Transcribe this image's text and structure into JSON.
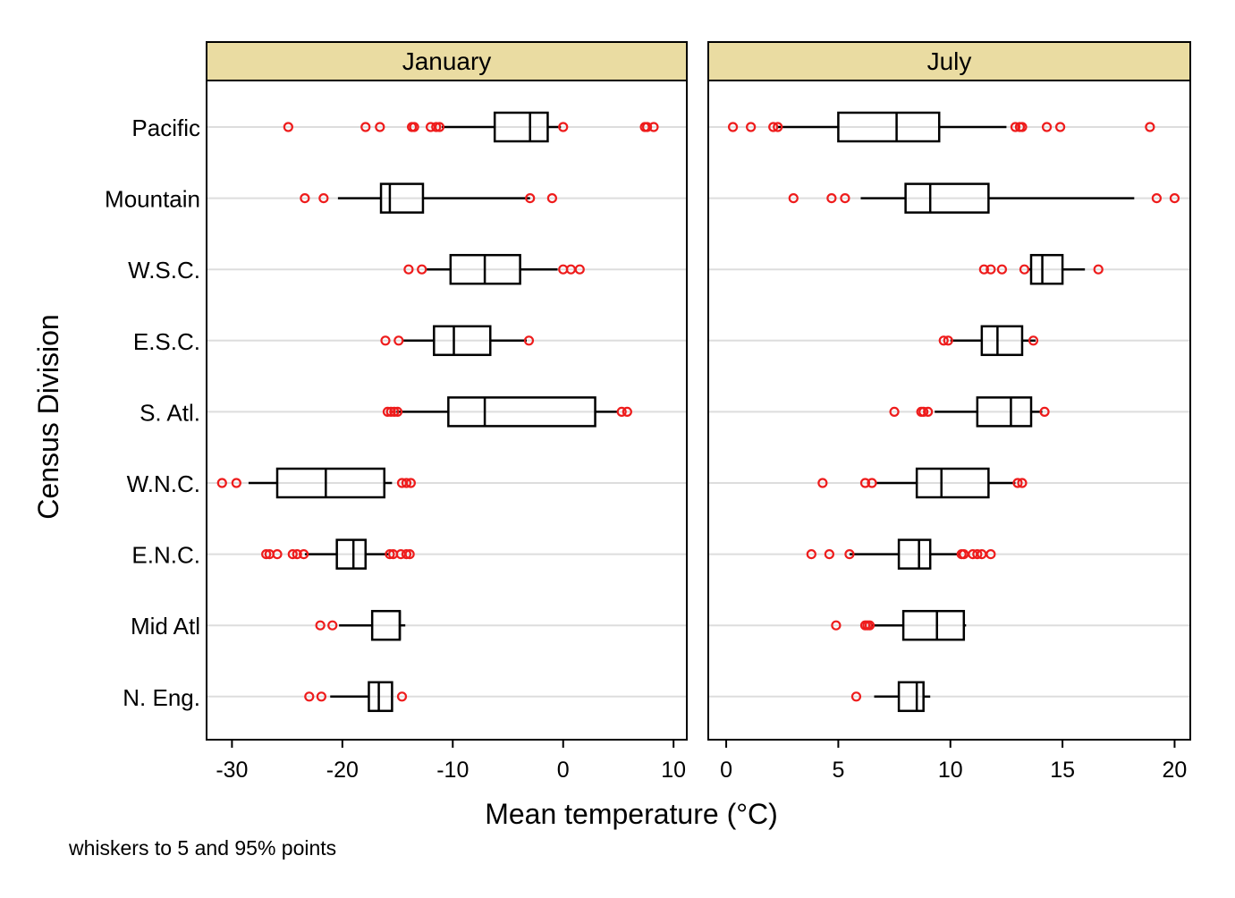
{
  "chart_data": {
    "type": "boxplot",
    "ylabel": "Census Division",
    "xlabel": "Mean temperature (°C)",
    "note": "whiskers to 5 and 95% points",
    "categories": [
      "Pacific",
      "Mountain",
      "W.S.C.",
      "E.S.C.",
      "S. Atl.",
      "W.N.C.",
      "E.N.C.",
      "Mid Atl",
      "N. Eng."
    ],
    "panels": [
      {
        "title": "January",
        "xlim": [
          -32.3,
          11.2
        ],
        "xticks": [
          -30,
          -20,
          -10,
          0,
          10
        ],
        "boxes": [
          {
            "category": "Pacific",
            "whisker_low": -11.0,
            "q1": -6.2,
            "median": -3.0,
            "q3": -1.4,
            "whisker_high": -0.2,
            "outliers": [
              -24.9,
              -17.9,
              -16.6,
              -13.7,
              -13.5,
              -12.0,
              -11.5,
              -11.2,
              0.0,
              7.4,
              7.6,
              8.2
            ]
          },
          {
            "category": "Mountain",
            "whisker_low": -20.4,
            "q1": -16.5,
            "median": -15.7,
            "q3": -12.7,
            "whisker_high": -3.0,
            "outliers": [
              -23.4,
              -21.7,
              -3.0,
              -1.0
            ]
          },
          {
            "category": "W.S.C.",
            "whisker_low": -12.5,
            "q1": -10.2,
            "median": -7.1,
            "q3": -3.9,
            "whisker_high": -0.5,
            "outliers": [
              -14.0,
              -12.8,
              0.0,
              0.7,
              1.5
            ]
          },
          {
            "category": "E.S.C.",
            "whisker_low": -14.5,
            "q1": -11.7,
            "median": -9.9,
            "q3": -6.6,
            "whisker_high": -3.3,
            "outliers": [
              -16.1,
              -14.9,
              -3.1
            ]
          },
          {
            "category": "S. Atl.",
            "whisker_low": -15.1,
            "q1": -10.4,
            "median": -7.1,
            "q3": 2.9,
            "whisker_high": 5.0,
            "outliers": [
              -15.9,
              -15.6,
              -15.3,
              -15.0,
              5.3,
              5.8
            ]
          },
          {
            "category": "W.N.C.",
            "whisker_low": -28.5,
            "q1": -25.9,
            "median": -21.5,
            "q3": -16.2,
            "whisker_high": -15.5,
            "outliers": [
              -30.9,
              -29.6,
              -14.6,
              -14.2,
              -13.8
            ]
          },
          {
            "category": "E.N.C.",
            "whisker_low": -23.4,
            "q1": -20.5,
            "median": -19.0,
            "q3": -17.9,
            "whisker_high": -15.7,
            "outliers": [
              -26.9,
              -26.6,
              -25.9,
              -24.5,
              -24.1,
              -23.5,
              -15.7,
              -15.4,
              -14.7,
              -14.2,
              -13.9
            ]
          },
          {
            "category": "Mid Atl",
            "whisker_low": -20.3,
            "q1": -17.3,
            "median": -14.8,
            "q3": -14.8,
            "whisker_high": -14.3,
            "outliers": [
              -22.0,
              -20.9
            ]
          },
          {
            "category": "N. Eng.",
            "whisker_low": -21.1,
            "q1": -17.6,
            "median": -16.7,
            "q3": -15.5,
            "whisker_high": -15.5,
            "outliers": [
              -23.0,
              -21.9,
              -14.6
            ]
          }
        ]
      },
      {
        "title": "July",
        "xlim": [
          -0.8,
          20.7
        ],
        "xticks": [
          0,
          5,
          10,
          15,
          20
        ],
        "boxes": [
          {
            "category": "Pacific",
            "whisker_low": 2.3,
            "q1": 5.0,
            "median": 7.6,
            "q3": 9.5,
            "whisker_high": 12.5,
            "outliers": [
              0.3,
              1.1,
              2.1,
              2.3,
              12.9,
              13.1,
              13.2,
              14.3,
              14.9,
              18.9
            ]
          },
          {
            "category": "Mountain",
            "whisker_low": 6.0,
            "q1": 8.0,
            "median": 9.1,
            "q3": 11.7,
            "whisker_high": 18.2,
            "outliers": [
              3.0,
              4.7,
              5.3,
              19.2,
              20.0
            ]
          },
          {
            "category": "W.S.C.",
            "whisker_low": 13.5,
            "q1": 13.6,
            "median": 14.1,
            "q3": 15.0,
            "whisker_high": 16.0,
            "outliers": [
              11.5,
              11.8,
              12.3,
              13.3,
              16.6
            ]
          },
          {
            "category": "E.S.C.",
            "whisker_low": 10.0,
            "q1": 11.4,
            "median": 12.1,
            "q3": 13.2,
            "whisker_high": 13.8,
            "outliers": [
              9.7,
              9.9,
              13.7
            ]
          },
          {
            "category": "S. Atl.",
            "whisker_low": 9.3,
            "q1": 11.2,
            "median": 12.7,
            "q3": 13.6,
            "whisker_high": 14.1,
            "outliers": [
              7.5,
              8.7,
              8.8,
              9.0,
              14.2
            ]
          },
          {
            "category": "W.N.C.",
            "whisker_low": 6.7,
            "q1": 8.5,
            "median": 9.6,
            "q3": 11.7,
            "whisker_high": 12.9,
            "outliers": [
              4.3,
              6.2,
              6.5,
              13.0,
              13.2
            ]
          },
          {
            "category": "E.N.C.",
            "whisker_low": 5.5,
            "q1": 7.7,
            "median": 8.6,
            "q3": 9.1,
            "whisker_high": 10.4,
            "outliers": [
              3.8,
              4.6,
              5.5,
              10.5,
              10.6,
              11.0,
              11.2,
              11.4,
              11.8
            ]
          },
          {
            "category": "Mid Atl",
            "whisker_low": 6.5,
            "q1": 7.9,
            "median": 9.4,
            "q3": 10.6,
            "whisker_high": 10.7,
            "outliers": [
              4.9,
              6.2,
              6.3,
              6.4
            ]
          },
          {
            "category": "N. Eng.",
            "whisker_low": 6.6,
            "q1": 7.7,
            "median": 8.5,
            "q3": 8.8,
            "whisker_high": 9.1,
            "outliers": [
              5.8
            ]
          }
        ]
      }
    ],
    "colors": {
      "header_fill": "#eadca2",
      "outlier": "#ee1c1c",
      "gridline": "#dddddd",
      "box_stroke": "#000000"
    },
    "grid": true
  }
}
